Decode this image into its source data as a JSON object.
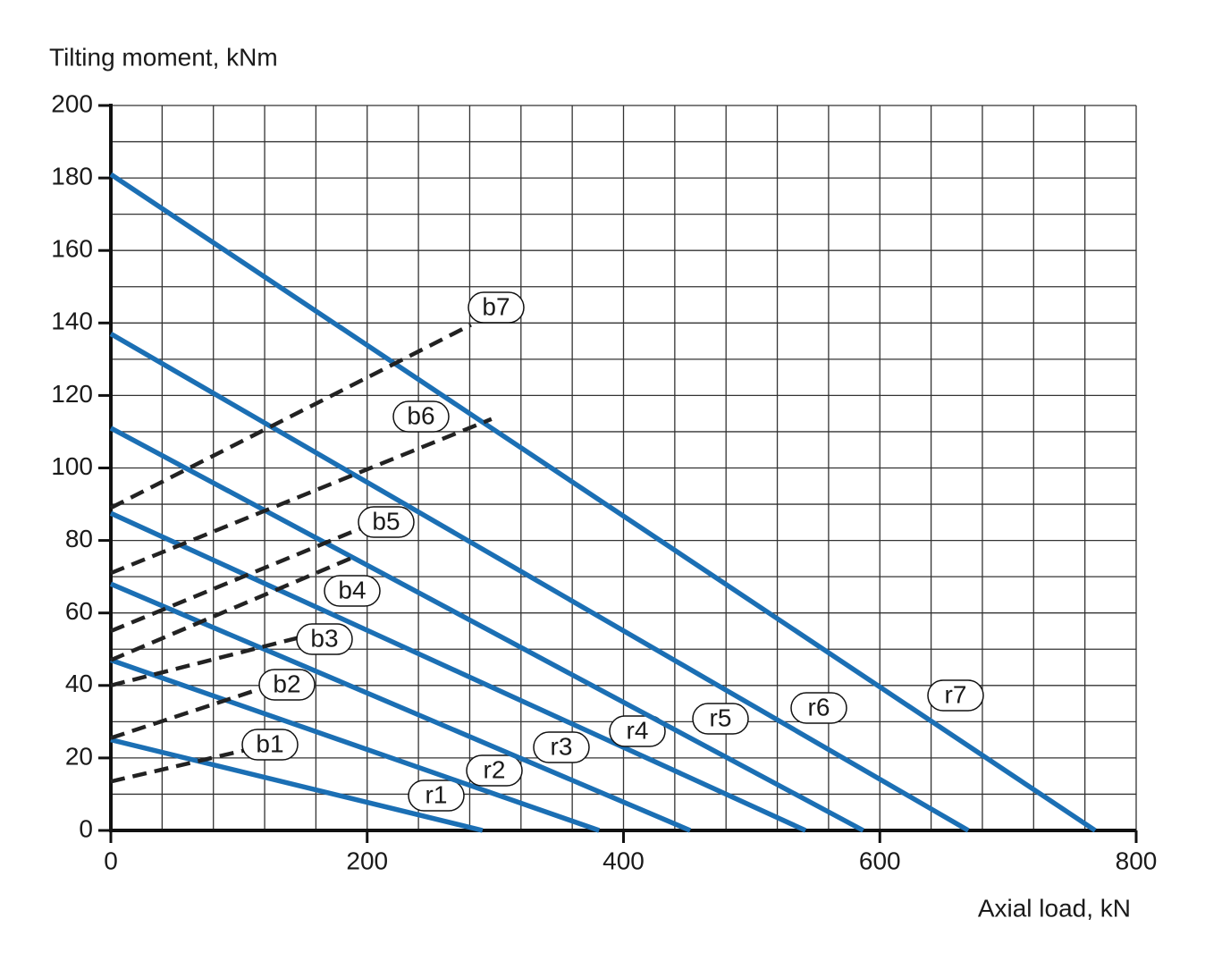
{
  "chart_data": {
    "type": "line",
    "y_label": "Tilting moment, kNm",
    "x_label": "Axial load, kN",
    "xlim": [
      0,
      800
    ],
    "ylim": [
      0,
      200
    ],
    "xticks": [
      0,
      200,
      400,
      600,
      800
    ],
    "yticks": [
      0,
      20,
      40,
      60,
      80,
      100,
      120,
      140,
      160,
      180,
      200
    ],
    "xgrid": [
      0,
      40,
      80,
      120,
      160,
      200,
      240,
      280,
      320,
      360,
      400,
      440,
      480,
      520,
      560,
      600,
      640,
      680,
      720,
      760,
      800
    ],
    "ygrid": [
      0,
      10,
      20,
      30,
      40,
      50,
      60,
      70,
      80,
      90,
      100,
      110,
      120,
      130,
      140,
      150,
      160,
      170,
      180,
      190,
      200
    ],
    "grid": true,
    "series": [
      {
        "name": "r1",
        "color": "#1b6fb4",
        "dashed": false,
        "x": [
          0,
          290
        ],
        "values": [
          25,
          0
        ]
      },
      {
        "name": "r2",
        "color": "#1b6fb4",
        "dashed": false,
        "x": [
          0,
          381
        ],
        "values": [
          47,
          0
        ]
      },
      {
        "name": "r3",
        "color": "#1b6fb4",
        "dashed": false,
        "x": [
          0,
          452
        ],
        "values": [
          68,
          0
        ]
      },
      {
        "name": "r4",
        "color": "#1b6fb4",
        "dashed": false,
        "x": [
          0,
          542
        ],
        "values": [
          87.5,
          0
        ]
      },
      {
        "name": "r5",
        "color": "#1b6fb4",
        "dashed": false,
        "x": [
          0,
          587
        ],
        "values": [
          111,
          0
        ]
      },
      {
        "name": "r6",
        "color": "#1b6fb4",
        "dashed": false,
        "x": [
          0,
          669
        ],
        "values": [
          137,
          0
        ]
      },
      {
        "name": "r7",
        "color": "#1b6fb4",
        "dashed": false,
        "x": [
          0,
          768
        ],
        "values": [
          181,
          0
        ]
      },
      {
        "name": "b1",
        "color": "#222222",
        "dashed": true,
        "x": [
          0,
          109
        ],
        "values": [
          13.5,
          22.5
        ]
      },
      {
        "name": "b2",
        "color": "#222222",
        "dashed": true,
        "x": [
          0,
          116
        ],
        "values": [
          25.5,
          39
        ]
      },
      {
        "name": "b3",
        "color": "#222222",
        "dashed": true,
        "x": [
          0,
          150
        ],
        "values": [
          40,
          53.5
        ]
      },
      {
        "name": "b4",
        "color": "#222222",
        "dashed": true,
        "x": [
          0,
          190
        ],
        "values": [
          47,
          75.5
        ]
      },
      {
        "name": "b5",
        "color": "#222222",
        "dashed": true,
        "x": [
          0,
          196
        ],
        "values": [
          55,
          83.5
        ]
      },
      {
        "name": "b6",
        "color": "#222222",
        "dashed": true,
        "x": [
          0,
          297
        ],
        "values": [
          71,
          113.5
        ]
      },
      {
        "name": "b7",
        "color": "#222222",
        "dashed": true,
        "x": [
          0,
          281
        ],
        "values": [
          89,
          139.5
        ]
      }
    ]
  }
}
